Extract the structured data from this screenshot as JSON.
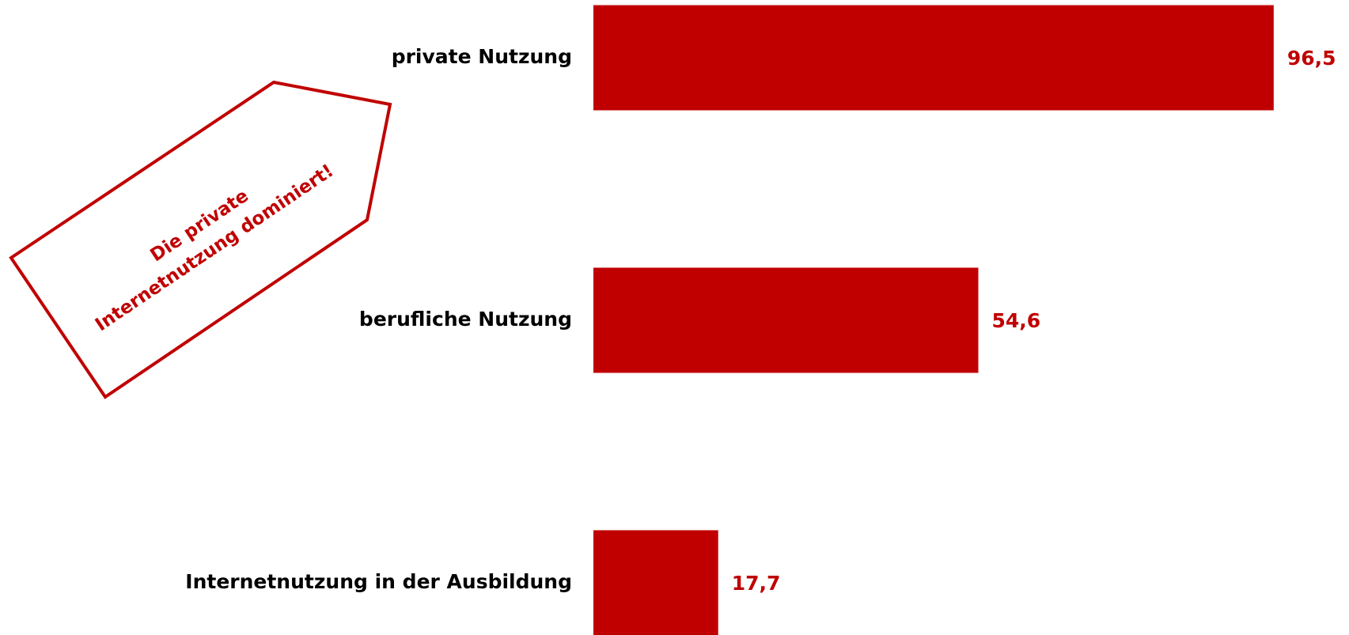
{
  "chart_data": {
    "type": "barh",
    "categories": [
      "private Nutzung",
      "berufliche Nutzung",
      "Internetnutzung in der Ausbildung"
    ],
    "values": [
      96.5,
      54.6,
      17.7
    ],
    "value_labels": [
      "96,5",
      "54,6",
      "17,7"
    ],
    "color": "#c00000",
    "xlim": [
      0,
      100
    ],
    "annotation": [
      "Die private",
      "Internetnutzung dominiert!"
    ]
  }
}
